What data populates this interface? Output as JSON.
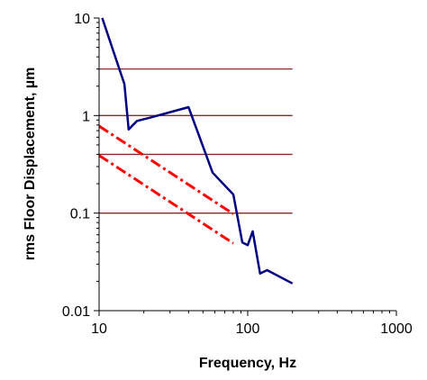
{
  "chart_data": {
    "type": "line",
    "title": "",
    "xlabel": "Frequency, Hz",
    "ylabel": "rms Floor Displacement,  µm",
    "x_scale": "log",
    "y_scale": "log",
    "xlim": [
      10,
      1000
    ],
    "ylim": [
      0.01,
      10
    ],
    "x_ticks": [
      {
        "value": 10,
        "label": "10"
      },
      {
        "value": 100,
        "label": "100"
      },
      {
        "value": 1000,
        "label": "1000"
      }
    ],
    "y_ticks": [
      {
        "value": 0.01,
        "label": "0.01"
      },
      {
        "value": 0.1,
        "label": "0.1"
      },
      {
        "value": 1,
        "label": "1"
      },
      {
        "value": 10,
        "label": "10"
      }
    ],
    "grid": false,
    "legend": "none",
    "reference_lines": [
      {
        "y": 3,
        "x_range": [
          10,
          200
        ],
        "color": "#8b2a2a"
      },
      {
        "y": 1,
        "x_range": [
          10,
          200
        ],
        "color": "#8b2a2a"
      },
      {
        "y": 0.4,
        "x_range": [
          10,
          200
        ],
        "color": "#8b2a2a"
      },
      {
        "y": 0.1,
        "x_range": [
          10,
          200
        ],
        "color": "#8b2a2a"
      }
    ],
    "series": [
      {
        "style": "solid",
        "color": "#000080",
        "points": [
          [
            10.5,
            10
          ],
          [
            14.8,
            2.1
          ],
          [
            15.8,
            0.72
          ],
          [
            18,
            0.88
          ],
          [
            22,
            0.95
          ],
          [
            40,
            1.22
          ],
          [
            58,
            0.26
          ],
          [
            80,
            0.155
          ],
          [
            92,
            0.05
          ],
          [
            100,
            0.047
          ],
          [
            108,
            0.065
          ],
          [
            121,
            0.024
          ],
          [
            135,
            0.026
          ],
          [
            200,
            0.019
          ]
        ]
      },
      {
        "style": "dash-dot",
        "color": "#ff0000",
        "points": [
          [
            10,
            0.78
          ],
          [
            80,
            0.098
          ]
        ]
      },
      {
        "style": "dash-dot",
        "color": "#ff0000",
        "points": [
          [
            10,
            0.39
          ],
          [
            80,
            0.049
          ]
        ]
      }
    ]
  }
}
